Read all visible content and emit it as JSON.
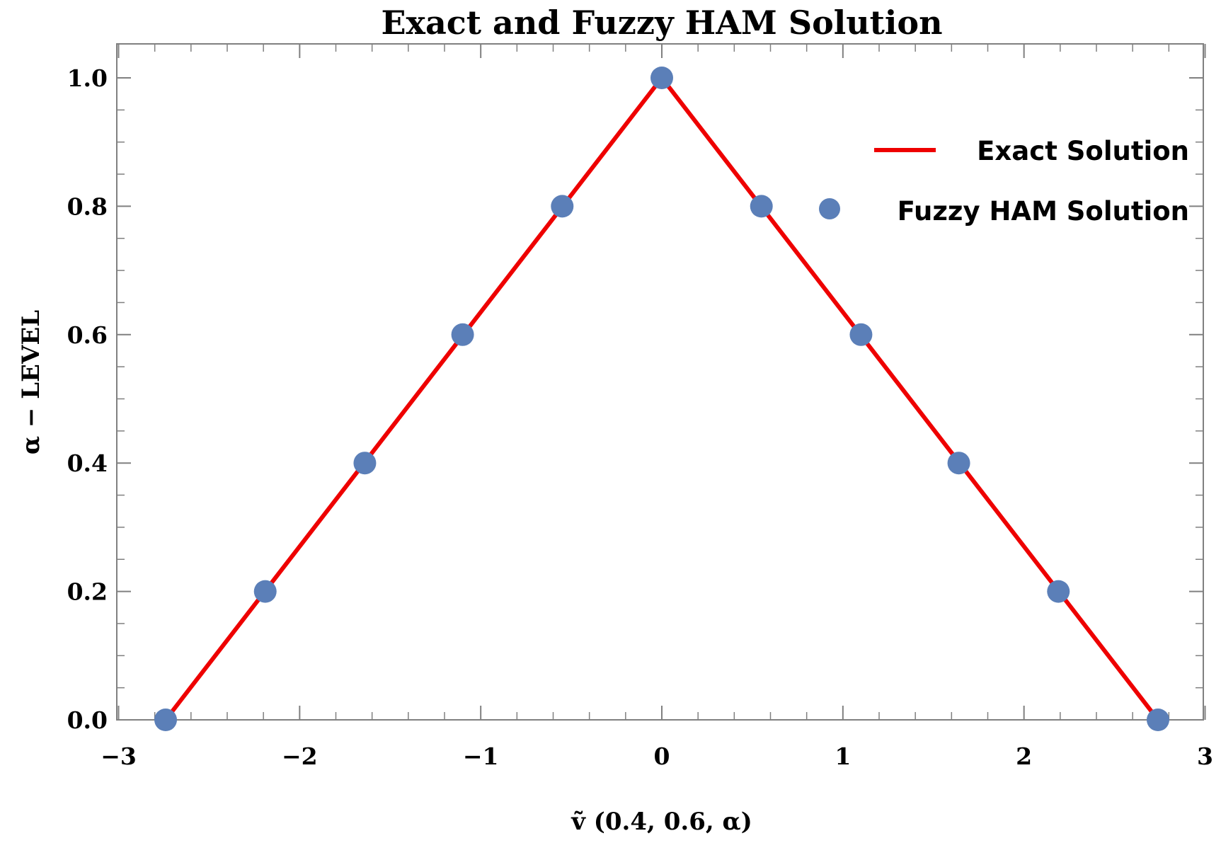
{
  "chart_data": {
    "type": "line",
    "title": "Exact and Fuzzy HAM Solution",
    "xlabel": "ṽ (0.4, 0.6, α)",
    "ylabel": "α − LEVEL",
    "xlim": [
      -3,
      3
    ],
    "ylim": [
      0,
      1.05
    ],
    "xticks": [
      -3,
      -2,
      -1,
      0,
      1,
      2,
      3
    ],
    "xtick_labels": [
      "−3",
      "−2",
      "−1",
      "0",
      "1",
      "2",
      "3"
    ],
    "yticks": [
      0,
      0.2,
      0.4,
      0.6,
      0.8,
      1.0
    ],
    "ytick_labels": [
      "0.0",
      "0.2",
      "0.4",
      "0.6",
      "0.8",
      "1.0"
    ],
    "grid": false,
    "legend_position": "top-right",
    "series": [
      {
        "name": "Exact Solution",
        "kind": "line",
        "color": "#ee0000",
        "x": [
          -2.74,
          0,
          2.74
        ],
        "y": [
          0,
          1.0,
          0
        ]
      },
      {
        "name": "Fuzzy HAM Solution",
        "kind": "scatter",
        "color": "#5b7fb8",
        "x": [
          -2.74,
          -2.19,
          -1.64,
          -1.1,
          -0.55,
          0,
          0.55,
          1.1,
          1.64,
          2.19,
          2.74
        ],
        "y": [
          0,
          0.2,
          0.4,
          0.6,
          0.8,
          1.0,
          0.8,
          0.6,
          0.4,
          0.2,
          0
        ]
      }
    ]
  }
}
